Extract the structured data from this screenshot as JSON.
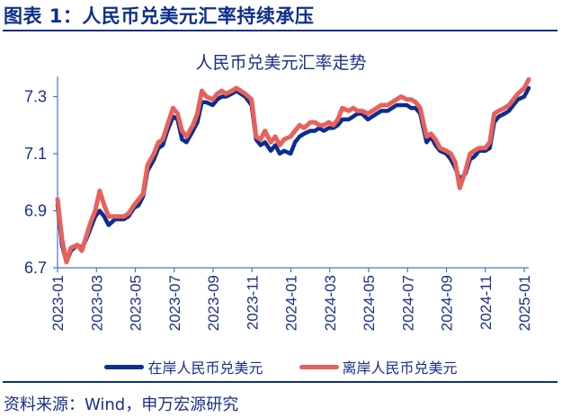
{
  "header": {
    "figure_title": "图表 1：人民币兑美元汇率持续承压"
  },
  "footer": {
    "source": "资料来源：Wind，申万宏源研究"
  },
  "colors": {
    "title": "#0d2f8c",
    "axis": "#4a72d6",
    "onshore": "#0a2d8f",
    "offshore": "#e8615a",
    "text": "#1a2f8a"
  },
  "chart_data": {
    "type": "line",
    "title": "人民币兑美元汇率走势",
    "xlabel": "",
    "ylabel": "",
    "ylim": [
      6.7,
      7.38
    ],
    "yticks": [
      6.7,
      6.9,
      7.1,
      7.3
    ],
    "ytick_labels": [
      "6.7",
      "6.9",
      "7.1",
      "7.3"
    ],
    "xtick_labels": [
      "2023-01",
      "2023-03",
      "2023-05",
      "2023-07",
      "2023-09",
      "2023-11",
      "2024-01",
      "2024-03",
      "2024-05",
      "2024-07",
      "2024-09",
      "2024-11",
      "2025-01"
    ],
    "grid": false,
    "legend_position": "bottom",
    "x": [
      "2023-01-01",
      "2023-01-08",
      "2023-01-15",
      "2023-01-22",
      "2023-02-01",
      "2023-02-08",
      "2023-02-15",
      "2023-02-22",
      "2023-03-01",
      "2023-03-08",
      "2023-03-15",
      "2023-03-22",
      "2023-04-01",
      "2023-04-08",
      "2023-04-15",
      "2023-04-22",
      "2023-05-01",
      "2023-05-08",
      "2023-05-15",
      "2023-05-22",
      "2023-06-01",
      "2023-06-08",
      "2023-06-15",
      "2023-06-22",
      "2023-07-01",
      "2023-07-08",
      "2023-07-15",
      "2023-07-22",
      "2023-08-01",
      "2023-08-08",
      "2023-08-15",
      "2023-08-22",
      "2023-09-01",
      "2023-09-08",
      "2023-09-15",
      "2023-09-22",
      "2023-10-01",
      "2023-10-08",
      "2023-10-15",
      "2023-10-22",
      "2023-11-01",
      "2023-11-08",
      "2023-11-15",
      "2023-11-22",
      "2023-12-01",
      "2023-12-08",
      "2023-12-15",
      "2023-12-22",
      "2024-01-01",
      "2024-01-08",
      "2024-01-15",
      "2024-01-22",
      "2024-02-01",
      "2024-02-08",
      "2024-02-15",
      "2024-02-22",
      "2024-03-01",
      "2024-03-08",
      "2024-03-15",
      "2024-03-22",
      "2024-04-01",
      "2024-04-08",
      "2024-04-15",
      "2024-04-22",
      "2024-05-01",
      "2024-05-08",
      "2024-05-15",
      "2024-05-22",
      "2024-06-01",
      "2024-06-08",
      "2024-06-15",
      "2024-06-22",
      "2024-07-01",
      "2024-07-08",
      "2024-07-15",
      "2024-07-22",
      "2024-08-01",
      "2024-08-08",
      "2024-08-15",
      "2024-08-22",
      "2024-09-01",
      "2024-09-08",
      "2024-09-15",
      "2024-09-22",
      "2024-10-01",
      "2024-10-08",
      "2024-10-15",
      "2024-10-22",
      "2024-11-01",
      "2024-11-08",
      "2024-11-15",
      "2024-11-22",
      "2024-12-01",
      "2024-12-08",
      "2024-12-15",
      "2024-12-22",
      "2025-01-01",
      "2025-01-08"
    ],
    "series": [
      {
        "name": "在岸人民币兑美元",
        "color": "#0a2d8f",
        "values": [
          6.92,
          6.78,
          6.72,
          6.76,
          6.78,
          6.77,
          6.8,
          6.84,
          6.88,
          6.9,
          6.88,
          6.85,
          6.87,
          6.87,
          6.87,
          6.88,
          6.91,
          6.92,
          6.95,
          7.04,
          7.08,
          7.12,
          7.13,
          7.18,
          7.23,
          7.22,
          7.15,
          7.14,
          7.18,
          7.21,
          7.28,
          7.28,
          7.27,
          7.29,
          7.3,
          7.3,
          7.31,
          7.32,
          7.31,
          7.3,
          7.27,
          7.15,
          7.13,
          7.14,
          7.11,
          7.13,
          7.1,
          7.11,
          7.1,
          7.14,
          7.16,
          7.17,
          7.18,
          7.18,
          7.19,
          7.18,
          7.19,
          7.19,
          7.2,
          7.22,
          7.22,
          7.23,
          7.24,
          7.24,
          7.22,
          7.23,
          7.24,
          7.25,
          7.25,
          7.26,
          7.27,
          7.27,
          7.27,
          7.26,
          7.26,
          7.24,
          7.14,
          7.16,
          7.13,
          7.11,
          7.1,
          7.08,
          7.05,
          7.01,
          7.03,
          7.08,
          7.09,
          7.11,
          7.11,
          7.12,
          7.21,
          7.23,
          7.24,
          7.25,
          7.27,
          7.29,
          7.3,
          7.33
        ]
      },
      {
        "name": "离岸人民币兑美元",
        "color": "#e8615a",
        "values": [
          6.94,
          6.8,
          6.72,
          6.77,
          6.78,
          6.76,
          6.81,
          6.86,
          6.9,
          6.97,
          6.92,
          6.88,
          6.88,
          6.88,
          6.88,
          6.89,
          6.92,
          6.94,
          6.96,
          7.06,
          7.1,
          7.14,
          7.15,
          7.2,
          7.26,
          7.24,
          7.18,
          7.16,
          7.2,
          7.24,
          7.32,
          7.3,
          7.29,
          7.31,
          7.32,
          7.31,
          7.32,
          7.33,
          7.32,
          7.31,
          7.29,
          7.16,
          7.15,
          7.18,
          7.14,
          7.16,
          7.13,
          7.15,
          7.16,
          7.18,
          7.2,
          7.19,
          7.21,
          7.21,
          7.2,
          7.2,
          7.21,
          7.2,
          7.22,
          7.26,
          7.25,
          7.26,
          7.25,
          7.25,
          7.24,
          7.25,
          7.26,
          7.27,
          7.27,
          7.28,
          7.29,
          7.3,
          7.29,
          7.29,
          7.28,
          7.26,
          7.16,
          7.17,
          7.15,
          7.12,
          7.11,
          7.1,
          7.07,
          6.98,
          7.04,
          7.1,
          7.11,
          7.12,
          7.12,
          7.14,
          7.24,
          7.25,
          7.26,
          7.27,
          7.29,
          7.31,
          7.33,
          7.36
        ]
      }
    ]
  }
}
